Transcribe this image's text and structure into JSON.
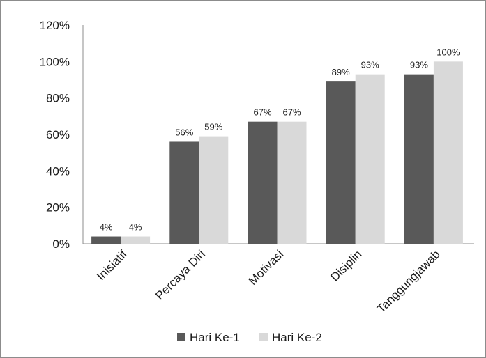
{
  "chart_data": {
    "type": "bar",
    "categories": [
      "Inisiatif",
      "Percaya Diri",
      "Motivasi",
      "Disiplin",
      "Tanggungjawab"
    ],
    "series": [
      {
        "name": "Hari Ke-1",
        "values": [
          4,
          56,
          67,
          89,
          93
        ],
        "labels": [
          "4%",
          "56%",
          "67%",
          "89%",
          "93%"
        ],
        "color": "#595959"
      },
      {
        "name": "Hari Ke-2",
        "values": [
          4,
          59,
          67,
          93,
          100
        ],
        "labels": [
          "4%",
          "59%",
          "67%",
          "93%",
          "100%"
        ],
        "color": "#d9d9d9"
      }
    ],
    "ylim": [
      0,
      120
    ],
    "yticks": [
      0,
      20,
      40,
      60,
      80,
      100,
      120
    ],
    "ytick_labels": [
      "0%",
      "20%",
      "40%",
      "60%",
      "80%",
      "100%",
      "120%"
    ],
    "grid": false,
    "legend_position": "bottom"
  }
}
